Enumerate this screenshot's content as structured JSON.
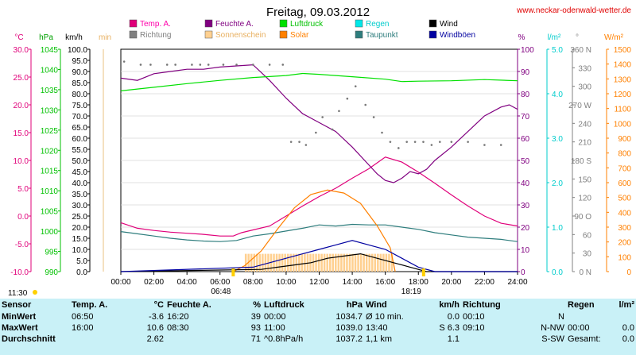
{
  "chart_data": {
    "type": "line",
    "title": "Freitag, 09.03.2012",
    "site": "www.neckar-odenwald-wetter.de",
    "x_ticks": [
      "00:00",
      "02:00",
      "04:00",
      "06:00",
      "08:00",
      "10:00",
      "12:00",
      "14:00",
      "16:00",
      "18:00",
      "20:00",
      "22:00",
      "24:00"
    ],
    "sunrise": "06:48",
    "sunset": "18:19",
    "left_time": "11:30",
    "legend": [
      {
        "label": "Temp. A.",
        "color": "#e0007a"
      },
      {
        "label": "Feuchte A.",
        "color": "#800080"
      },
      {
        "label": "Luftdruck",
        "color": "#00e000"
      },
      {
        "label": "Regen",
        "color": "#00e8e8"
      },
      {
        "label": "Wind",
        "color": "#000000"
      },
      {
        "label": "Richtung",
        "color": "#808080"
      },
      {
        "label": "Sonnenschein",
        "color": "#ffd090"
      },
      {
        "label": "Solar",
        "color": "#ff8000"
      },
      {
        "label": "Taupunkt",
        "color": "#2e7d7d"
      },
      {
        "label": "Windböen",
        "color": "#0000a0"
      }
    ],
    "axes": {
      "temp": {
        "unit": "°C",
        "ticks": [
          "30.0",
          "25.0",
          "20.0",
          "15.0",
          "10.0",
          "5.0",
          "0.0",
          "-5.0",
          "-10.0"
        ],
        "range": [
          -10,
          30
        ]
      },
      "pressure": {
        "unit": "hPa",
        "ticks": [
          "1045",
          "1040",
          "1035",
          "1030",
          "1025",
          "1020",
          "1015",
          "1010",
          "1005",
          "1000",
          "995",
          "990"
        ],
        "range": [
          990,
          1045
        ]
      },
      "wind": {
        "unit": "km/h",
        "ticks": [
          "100.0",
          "95.0",
          "90.0",
          "85.0",
          "80.0",
          "75.0",
          "70.0",
          "65.0",
          "60.0",
          "55.0",
          "50.0",
          "45.0",
          "40.0",
          "35.0",
          "30.0",
          "25.0",
          "20.0",
          "15.0",
          "10.0",
          "5.0",
          "0.0"
        ],
        "range": [
          0,
          100
        ]
      },
      "sun_min": {
        "unit": "min"
      },
      "humidity": {
        "unit": "%",
        "ticks": [
          "100",
          "90",
          "80",
          "70",
          "60",
          "50",
          "40",
          "30",
          "20",
          "10",
          "0"
        ],
        "range": [
          0,
          100
        ]
      },
      "rain": {
        "unit": "l/m²",
        "ticks": [
          "5.0",
          "4.0",
          "3.0",
          "2.0",
          "1.0",
          "0.0"
        ],
        "range": [
          0,
          5
        ]
      },
      "direction": {
        "unit": "°",
        "ticks": [
          "360 N",
          "330",
          "300",
          "270 W",
          "240",
          "210",
          "180 S",
          "150",
          "120",
          "90 O",
          "60",
          "30",
          "0 N"
        ],
        "range": [
          0,
          360
        ]
      },
      "solar": {
        "unit": "W/m²",
        "ticks": [
          "1500",
          "1400",
          "1300",
          "1200",
          "1100",
          "1000",
          "900",
          "800",
          "700",
          "600",
          "500",
          "400",
          "300",
          "200",
          "100",
          "0"
        ],
        "range": [
          0,
          1500
        ]
      }
    },
    "series": [
      {
        "name": "Temp. A.",
        "color": "#e0007a",
        "points": [
          [
            0,
            -1.2
          ],
          [
            1,
            -2.2
          ],
          [
            2,
            -2.6
          ],
          [
            3,
            -2.9
          ],
          [
            4,
            -3.1
          ],
          [
            5,
            -3.3
          ],
          [
            6,
            -3.6
          ],
          [
            6.8,
            -3.6
          ],
          [
            7.3,
            -3.0
          ],
          [
            8,
            -2.5
          ],
          [
            9,
            -1.8
          ],
          [
            10,
            0
          ],
          [
            11,
            1.8
          ],
          [
            12,
            3.5
          ],
          [
            13,
            5.0
          ],
          [
            14,
            6.8
          ],
          [
            15,
            8.5
          ],
          [
            16,
            10.6
          ],
          [
            17,
            9.7
          ],
          [
            18,
            7.9
          ],
          [
            19,
            5.9
          ],
          [
            20,
            3.8
          ],
          [
            21,
            1.8
          ],
          [
            22,
            0
          ],
          [
            23,
            -1.3
          ],
          [
            24,
            -1.8
          ]
        ]
      },
      {
        "name": "Feuchte A.",
        "color": "#800080",
        "points": [
          [
            0,
            87
          ],
          [
            1,
            86
          ],
          [
            2,
            89
          ],
          [
            3,
            90
          ],
          [
            4,
            91
          ],
          [
            5,
            91
          ],
          [
            6,
            92
          ],
          [
            7,
            92.5
          ],
          [
            8,
            93
          ],
          [
            9,
            86
          ],
          [
            10,
            78
          ],
          [
            11,
            71
          ],
          [
            12,
            67
          ],
          [
            13,
            63
          ],
          [
            14,
            56
          ],
          [
            15,
            48
          ],
          [
            15.5,
            44
          ],
          [
            16,
            41
          ],
          [
            16.5,
            40
          ],
          [
            17,
            42
          ],
          [
            17.5,
            45
          ],
          [
            18,
            44
          ],
          [
            18.5,
            46
          ],
          [
            19,
            50
          ],
          [
            20,
            56
          ],
          [
            21,
            63
          ],
          [
            22,
            70
          ],
          [
            23,
            74
          ],
          [
            23.5,
            75
          ],
          [
            24,
            73
          ]
        ]
      },
      {
        "name": "Luftdruck",
        "color": "#00e000",
        "points": [
          [
            0,
            1034.7
          ],
          [
            2,
            1035.6
          ],
          [
            4,
            1036.5
          ],
          [
            6,
            1037.3
          ],
          [
            8,
            1038.0
          ],
          [
            10,
            1038.5
          ],
          [
            11,
            1039.0
          ],
          [
            12,
            1038.8
          ],
          [
            14,
            1038.2
          ],
          [
            16,
            1037.6
          ],
          [
            17,
            1037.0
          ],
          [
            18,
            1037.1
          ],
          [
            20,
            1037.2
          ],
          [
            22,
            1037.5
          ],
          [
            24,
            1037.2
          ]
        ]
      },
      {
        "name": "Taupunkt",
        "color": "#2e7d7d",
        "points": [
          [
            0,
            -2.8
          ],
          [
            1,
            -3.2
          ],
          [
            2,
            -3.6
          ],
          [
            3,
            -4.0
          ],
          [
            4,
            -4.3
          ],
          [
            5,
            -4.5
          ],
          [
            6,
            -4.6
          ],
          [
            7,
            -4.4
          ],
          [
            8,
            -3.6
          ],
          [
            9,
            -3.2
          ],
          [
            10,
            -2.7
          ],
          [
            11,
            -2.2
          ],
          [
            12,
            -1.6
          ],
          [
            13,
            -1.8
          ],
          [
            14,
            -1.5
          ],
          [
            15,
            -1.6
          ],
          [
            16,
            -1.6
          ],
          [
            17,
            -2.0
          ],
          [
            18,
            -2.4
          ],
          [
            19,
            -3.0
          ],
          [
            20,
            -3.4
          ],
          [
            21,
            -3.8
          ],
          [
            22,
            -4.0
          ],
          [
            23,
            -4.2
          ],
          [
            24,
            -4.6
          ]
        ]
      },
      {
        "name": "Solar",
        "color": "#ff8000",
        "points": [
          [
            6.8,
            0
          ],
          [
            7.5,
            40
          ],
          [
            8.5,
            140
          ],
          [
            9.5,
            290
          ],
          [
            10.5,
            430
          ],
          [
            11.5,
            520
          ],
          [
            12.5,
            550
          ],
          [
            13.5,
            530
          ],
          [
            14.5,
            460
          ],
          [
            15.5,
            310
          ],
          [
            16.3,
            160
          ],
          [
            16.6,
            0
          ]
        ]
      },
      {
        "name": "Wind",
        "color": "#000000",
        "points": [
          [
            0,
            0
          ],
          [
            8.5,
            1
          ],
          [
            9.5,
            2
          ],
          [
            10.5,
            3
          ],
          [
            11.5,
            4
          ],
          [
            12.5,
            6
          ],
          [
            13.5,
            7
          ],
          [
            14.5,
            8
          ],
          [
            15.5,
            6
          ],
          [
            16.5,
            4
          ],
          [
            17.5,
            2
          ],
          [
            18.5,
            0
          ],
          [
            24,
            0
          ]
        ]
      },
      {
        "name": "Windböen",
        "color": "#0000a0",
        "points": [
          [
            0,
            0
          ],
          [
            8,
            2
          ],
          [
            9,
            4
          ],
          [
            10,
            6
          ],
          [
            11,
            8
          ],
          [
            12,
            10
          ],
          [
            13,
            12
          ],
          [
            14,
            14
          ],
          [
            15,
            12
          ],
          [
            16,
            10
          ],
          [
            17,
            6
          ],
          [
            18,
            2
          ],
          [
            19,
            0
          ],
          [
            24,
            0
          ]
        ]
      }
    ],
    "direction_points": [
      [
        0.2,
        340
      ],
      [
        1.2,
        335
      ],
      [
        1.8,
        335
      ],
      [
        2.8,
        335
      ],
      [
        3.3,
        335
      ],
      [
        4.3,
        335
      ],
      [
        4.8,
        335
      ],
      [
        5.3,
        335
      ],
      [
        6.2,
        335
      ],
      [
        7.0,
        335
      ],
      [
        8.0,
        335
      ],
      [
        9.0,
        335
      ],
      [
        9.8,
        335
      ],
      [
        10.3,
        210
      ],
      [
        10.8,
        210
      ],
      [
        11.2,
        205
      ],
      [
        11.8,
        225
      ],
      [
        12.2,
        250
      ],
      [
        12.8,
        230
      ],
      [
        13.2,
        260
      ],
      [
        13.7,
        280
      ],
      [
        14.2,
        300
      ],
      [
        14.8,
        270
      ],
      [
        15.3,
        250
      ],
      [
        15.8,
        225
      ],
      [
        16.3,
        210
      ],
      [
        16.8,
        200
      ],
      [
        17.3,
        210
      ],
      [
        17.8,
        210
      ],
      [
        18.3,
        210
      ],
      [
        18.8,
        205
      ],
      [
        19.3,
        210
      ],
      [
        20.0,
        210
      ],
      [
        21.0,
        210
      ],
      [
        22.0,
        205
      ],
      [
        23.0,
        205
      ]
    ],
    "sunshine_bars": {
      "range": [
        7.5,
        16.5
      ],
      "value_min": 8
    }
  },
  "stats": {
    "headers": [
      "Sensor",
      "Temp. A.",
      "°C",
      "Feuchte A.",
      "%",
      "Luftdruck",
      "hPa",
      "Wind",
      "km/h",
      "Richtung",
      "",
      "Regen",
      "l/m²"
    ],
    "rows": [
      [
        "MinWert",
        "06:50",
        "-3.6",
        "16:20",
        "39",
        "00:00",
        "1034.7",
        "Ø 10 min.",
        "0.0",
        "00:10",
        "N",
        "",
        ""
      ],
      [
        "MaxWert",
        "16:00",
        "10.6",
        "08:30",
        "93",
        "11:00",
        "1039.0",
        "13:40",
        "S 6.3",
        "09:10",
        "N-NW",
        "00:00",
        "0.0"
      ],
      [
        "Durchschnitt",
        "",
        "2.62",
        "",
        "71",
        "^0.8hPa/h",
        "1037.2",
        "1,1 km",
        "1.1",
        "",
        "S-SW",
        "Gesamt:",
        "0.0"
      ]
    ]
  }
}
